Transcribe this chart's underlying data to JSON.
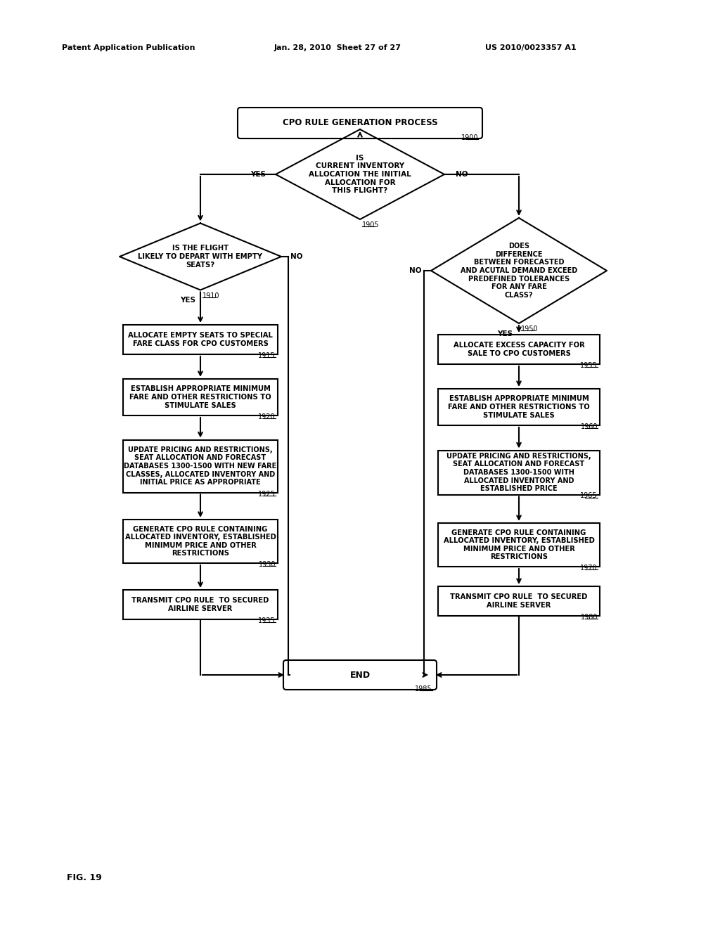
{
  "bg_color": "#ffffff",
  "header_left": "Patent Application Publication",
  "header_mid": "Jan. 28, 2010  Sheet 27 of 27",
  "header_right": "US 2010/0023357 A1",
  "fig_label": "FIG. 19",
  "title_text": "CPO RULE GENERATION PROCESS",
  "title_ref": "1900",
  "d1905_text": "IS\nCURRENT INVENTORY\nALLOCATION THE INITIAL\nALLOCATION FOR\nTHIS FLIGHT?",
  "d1905_ref": "1905",
  "d1910_text": "IS THE FLIGHT\nLIKELY TO DEPART WITH EMPTY\nSEATS?",
  "d1910_ref": "1910",
  "b1915_text": "ALLOCATE EMPTY SEATS TO SPECIAL\nFARE CLASS FOR CPO CUSTOMERS",
  "b1915_ref": "1915",
  "b1920_text": "ESTABLISH APPROPRIATE MINIMUM\nFARE AND OTHER RESTRICTIONS TO\nSTIMULATE SALES",
  "b1920_ref": "1920",
  "b1925_text": "UPDATE PRICING AND RESTRICTIONS,\nSEAT ALLOCATION AND FORECAST\nDATABASES 1300-1500 WITH NEW FARE\nCLASSES, ALLOCATED INVENTORY AND\nINITIAL PRICE AS APPROPRIATE",
  "b1925_ref": "1925",
  "b1930_text": "GENERATE CPO RULE CONTAINING\nALLOCATED INVENTORY, ESTABLISHED\nMINIMUM PRICE AND OTHER\nRESTRICTIONS",
  "b1930_ref": "1930",
  "b1935_text": "TRANSMIT CPO RULE  TO SECURED\nAIRLINE SERVER",
  "b1935_ref": "1935",
  "d1950_text": "DOES\nDIFFERENCE\nBETWEEN FORECASTED\nAND ACUTAL DEMAND EXCEED\nPREDEFINED TOLERANCES\nFOR ANY FARE\nCLASS?",
  "d1950_ref": "1950",
  "b1955_text": "ALLOCATE EXCESS CAPACITY FOR\nSALE TO CPO CUSTOMERS",
  "b1955_ref": "1955",
  "b1960_text": "ESTABLISH APPROPRIATE MINIMUM\nFARE AND OTHER RESTRICTIONS TO\nSTIMULATE SALES",
  "b1960_ref": "1960",
  "b1965_text": "UPDATE PRICING AND RESTRICTIONS,\nSEAT ALLOCATION AND FORECAST\nDATABASES 1300-1500 WITH\nALLOCATED INVENTORY AND\nESTABLISHED PRICE",
  "b1965_ref": "1965",
  "b1970_text": "GENERATE CPO RULE CONTAINING\nALLOCATED INVENTORY, ESTABLISHED\nMINIMUM PRICE AND OTHER\nRESTRICTIONS",
  "b1970_ref": "1970",
  "b1980_text": "TRANSMIT CPO RULE  TO SECURED\nAIRLINE SERVER",
  "b1980_ref": "1980",
  "end_text": "END",
  "end_ref": "1985"
}
